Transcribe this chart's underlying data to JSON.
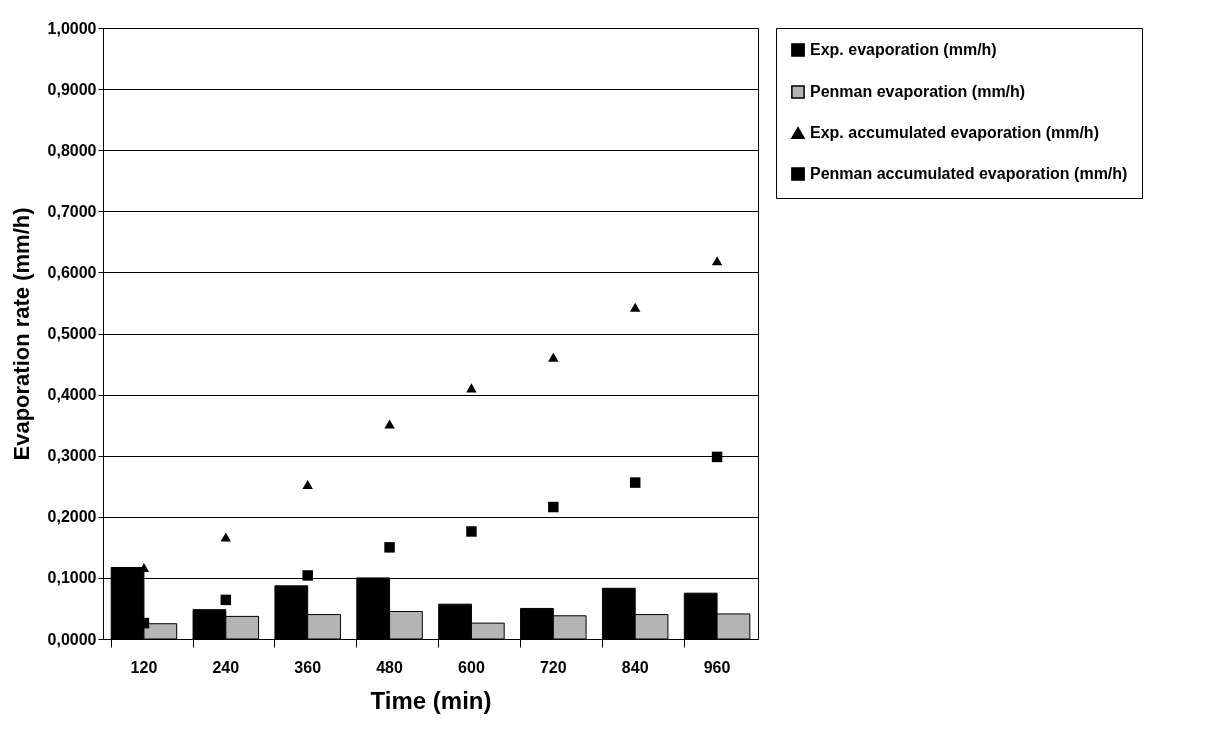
{
  "chart_data": {
    "type": "bar",
    "xlabel": "Time (min)",
    "ylabel": "Evaporation rate (mm/h)",
    "categories": [
      "120",
      "240",
      "360",
      "480",
      "600",
      "720",
      "840",
      "960"
    ],
    "series": [
      {
        "name": "Exp. evaporation (mm/h)",
        "color": "#000000",
        "values": [
          0.117,
          0.048,
          0.087,
          0.1,
          0.057,
          0.05,
          0.083,
          0.075
        ]
      },
      {
        "name": "Penman evaporation (mm/h)",
        "color": "#b4b4b4",
        "values": [
          0.025,
          0.037,
          0.04,
          0.045,
          0.026,
          0.038,
          0.04,
          0.041
        ]
      },
      {
        "name": "Exp. accumulated evaporation (mm/h)",
        "type": "scatter",
        "marker": "triangle",
        "color": "#000000",
        "values": [
          0.117,
          0.167,
          0.253,
          0.352,
          0.411,
          0.461,
          0.543,
          0.619
        ]
      },
      {
        "name": "Penman accumulated evaporation (mm/h)",
        "type": "scatter",
        "marker": "square",
        "color": "#000000",
        "values": [
          0.026,
          0.064,
          0.104,
          0.15,
          0.176,
          0.216,
          0.256,
          0.298
        ]
      }
    ],
    "ylim": [
      0,
      1
    ],
    "yticks": [
      {
        "value": 0,
        "label": "0,0000"
      },
      {
        "value": 0.1,
        "label": "0,1000"
      },
      {
        "value": 0.2,
        "label": "0,2000"
      },
      {
        "value": 0.3,
        "label": "0,3000"
      },
      {
        "value": 0.4,
        "label": "0,4000"
      },
      {
        "value": 0.5,
        "label": "0,5000"
      },
      {
        "value": 0.6,
        "label": "0,6000"
      },
      {
        "value": 0.7,
        "label": "0,7000"
      },
      {
        "value": 0.8,
        "label": "0,8000"
      },
      {
        "value": 0.9,
        "label": "0,9000"
      },
      {
        "value": 1,
        "label": "1,0000"
      }
    ],
    "grid": "y",
    "legend": "right"
  }
}
